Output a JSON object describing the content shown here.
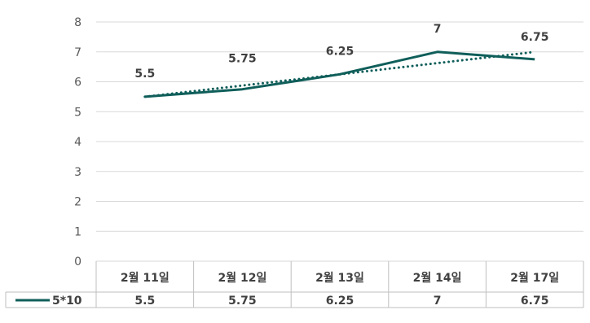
{
  "chart_data": {
    "type": "line",
    "categories": [
      "2월 11일",
      "2월 12일",
      "2월 13일",
      "2월 14일",
      "2월 17일"
    ],
    "series": [
      {
        "name": "5*10",
        "values": [
          5.5,
          5.75,
          6.25,
          7,
          6.75
        ],
        "color": "#0f5e5a"
      }
    ],
    "data_labels": [
      "5.5",
      "5.75",
      "6.25",
      "7",
      "6.75"
    ],
    "ylim": [
      0,
      8
    ],
    "yticks": [
      "0",
      "1",
      "2",
      "3",
      "4",
      "5",
      "6",
      "7",
      "8"
    ],
    "trendline": {
      "type": "linear",
      "style": "dotted",
      "color": "#0f5e5a"
    },
    "grid": true,
    "legend": "data-table",
    "data_table": true,
    "colors": {
      "gridline": "#d9d9d9",
      "table_border": "#bfbfbf",
      "text": "#404040"
    }
  }
}
